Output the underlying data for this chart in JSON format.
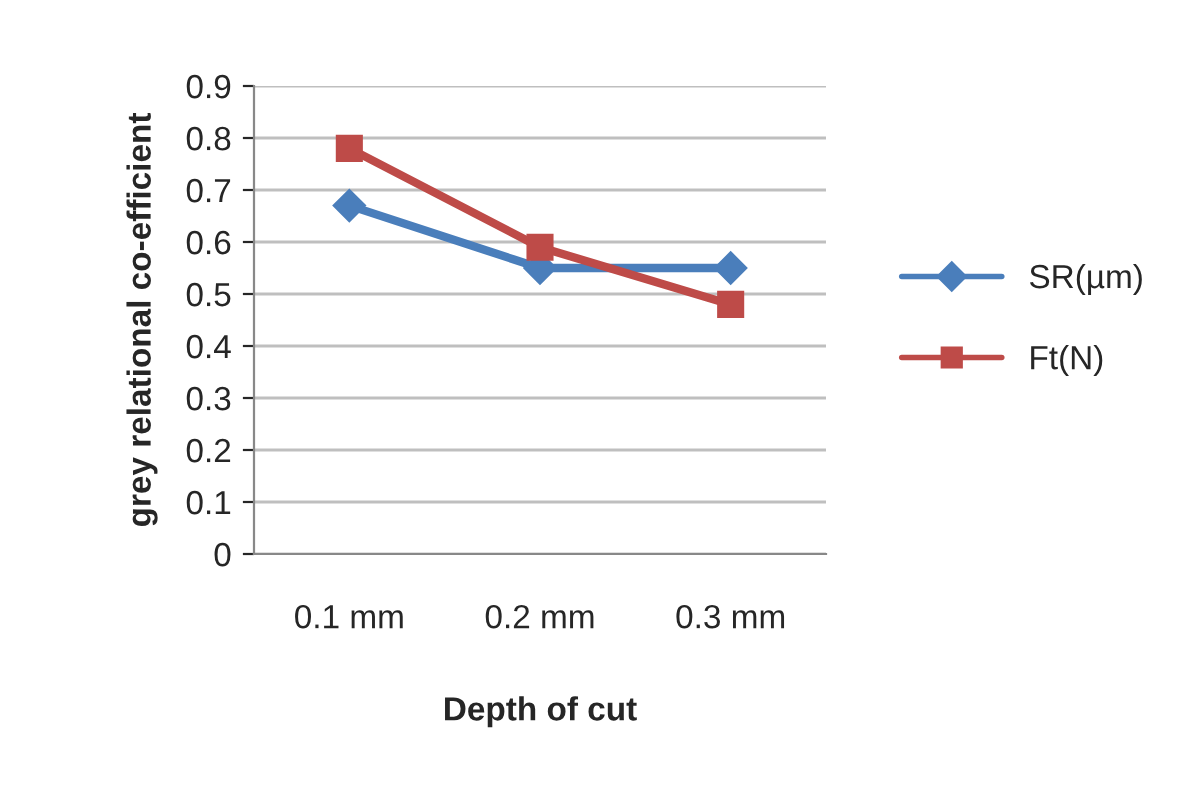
{
  "chart_data": {
    "type": "line",
    "xlabel": "Depth of cut",
    "ylabel": "grey relational co-efficient",
    "categories": [
      "0.1 mm",
      "0.2 mm",
      "0.3 mm"
    ],
    "series": [
      {
        "name": "SR(µm)",
        "color": "#4a7ebb",
        "marker": "diamond",
        "values": [
          0.67,
          0.55,
          0.55
        ]
      },
      {
        "name": "Ft(N)",
        "color": "#be4b48",
        "marker": "square",
        "values": [
          0.78,
          0.59,
          0.48
        ]
      }
    ],
    "ylim": [
      0,
      0.9
    ],
    "yticks": [
      0,
      0.1,
      0.2,
      0.3,
      0.4,
      0.5,
      0.6,
      0.7,
      0.8,
      0.9
    ],
    "grid": "y",
    "legend": "right",
    "line_style": "solid"
  }
}
